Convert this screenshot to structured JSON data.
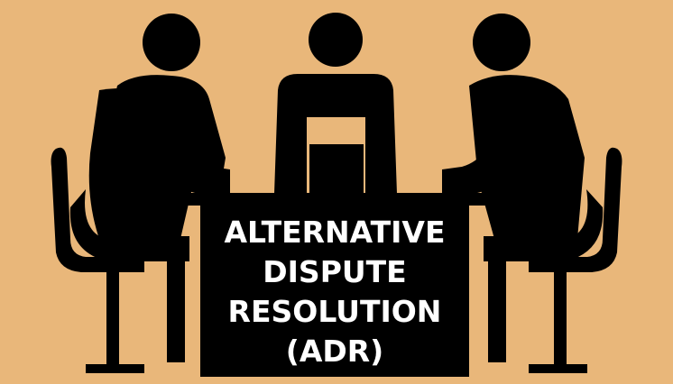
{
  "title_lines": [
    "ALTERNATIVE",
    "DISPUTE",
    "RESOLUTION",
    "(ADR)"
  ],
  "colors": {
    "background": "#E9B77A",
    "silhouette": "#000000",
    "text": "#FFFFFF"
  }
}
